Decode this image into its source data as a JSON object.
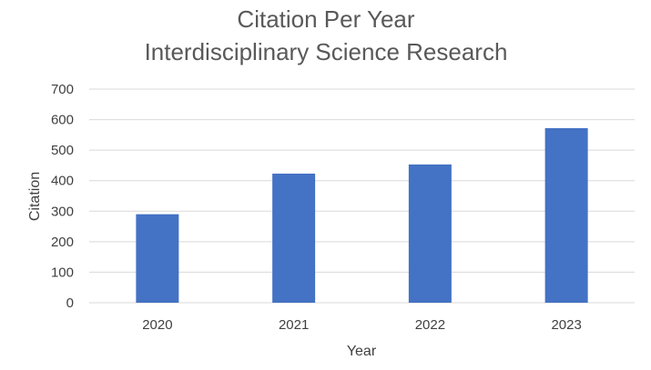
{
  "chart_data": {
    "type": "bar",
    "title": "Citation Per Year",
    "subtitle": "Interdisciplinary Science Research",
    "xlabel": "Year",
    "ylabel": "Citation",
    "categories": [
      "2020",
      "2021",
      "2022",
      "2023"
    ],
    "values": [
      290,
      423,
      453,
      572
    ],
    "ylim": [
      0,
      700
    ],
    "yticks": [
      0,
      100,
      200,
      300,
      400,
      500,
      600,
      700
    ],
    "grid": true,
    "legend": "none",
    "bar_color": "#4472C4",
    "grid_color": "#D9D9D9"
  }
}
